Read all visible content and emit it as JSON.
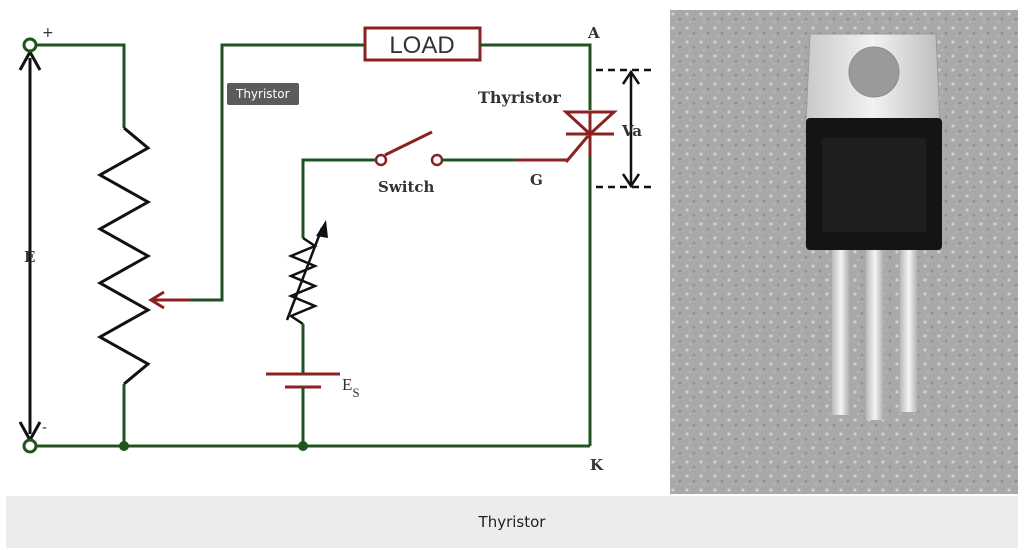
{
  "diagram": {
    "labels": {
      "plus": "+",
      "minus": "-",
      "voltage_e": "E",
      "load": "LOAD",
      "anode": "A",
      "cathode": "K",
      "thyristor": "Thyristor",
      "va": "Va",
      "switch": "Switch",
      "gate": "G",
      "es_main": "E",
      "es_sub": "S"
    },
    "tooltip": "Thyristor"
  },
  "caption": "Thyristor",
  "colors": {
    "wire": "#1f5420",
    "component": "#8b2222",
    "caption_bg": "#ececec",
    "tooltip_bg": "#5b5b5b"
  }
}
